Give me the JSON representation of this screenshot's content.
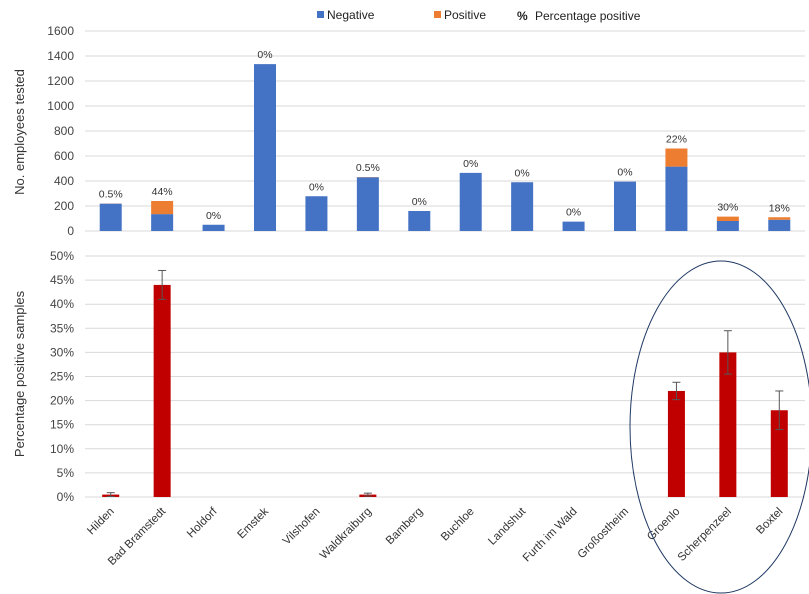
{
  "chart_data": [
    {
      "type": "bar",
      "stacked": true,
      "ylabel": "No. employees tested",
      "ylim": [
        0,
        1600
      ],
      "yticks": [
        "0",
        "200",
        "400",
        "600",
        "800",
        "1000",
        "1200",
        "1400",
        "1600"
      ],
      "grid": true,
      "legend_position": "top",
      "legend": {
        "negative": "Negative",
        "positive": "Positive",
        "pct_symbol": "%",
        "pct": "Percentage positive"
      },
      "series": [
        {
          "name": "Negative",
          "color": "#4472C4",
          "values": [
            219,
            135,
            50,
            1335,
            278,
            430,
            160,
            465,
            390,
            75,
            395,
            515,
            80,
            90
          ]
        },
        {
          "name": "Positive",
          "color": "#ED7D31",
          "values": [
            1,
            105,
            0,
            0,
            0,
            2,
            0,
            0,
            0,
            0,
            0,
            145,
            35,
            20
          ]
        }
      ],
      "bar_labels": [
        "0.5%",
        "44%",
        "0%",
        "0%",
        "0%",
        "0.5%",
        "0%",
        "0%",
        "0%",
        "0%",
        "0%",
        "22%",
        "30%",
        "18%"
      ]
    },
    {
      "type": "bar",
      "ylabel": "Percentage positive samples",
      "ylim": [
        0,
        50
      ],
      "yticks": [
        "0%",
        "5%",
        "10%",
        "15%",
        "20%",
        "25%",
        "30%",
        "35%",
        "40%",
        "45%",
        "50%"
      ],
      "grid": true,
      "color": "#C00000",
      "categories": [
        "Hilden",
        "Bad Bramstedt",
        "Holdorf",
        "Emstek",
        "Vilshofen",
        "Waldkraiburg",
        "Bamberg",
        "Buchloe",
        "Landshut",
        "Furth im Wald",
        "Großostheim",
        "Groenlo",
        "Scherpenzeel",
        "Boxtel"
      ],
      "values": [
        0.5,
        44,
        0,
        0,
        0,
        0.5,
        0,
        0,
        0,
        0,
        0,
        22,
        30,
        18
      ],
      "error": [
        0.4,
        3,
        0,
        0,
        0,
        0.3,
        0,
        0,
        0,
        0,
        0,
        1.8,
        4.5,
        4
      ],
      "annotation": "ellipse around Groenlo, Scherpenzeel, Boxtel"
    }
  ]
}
